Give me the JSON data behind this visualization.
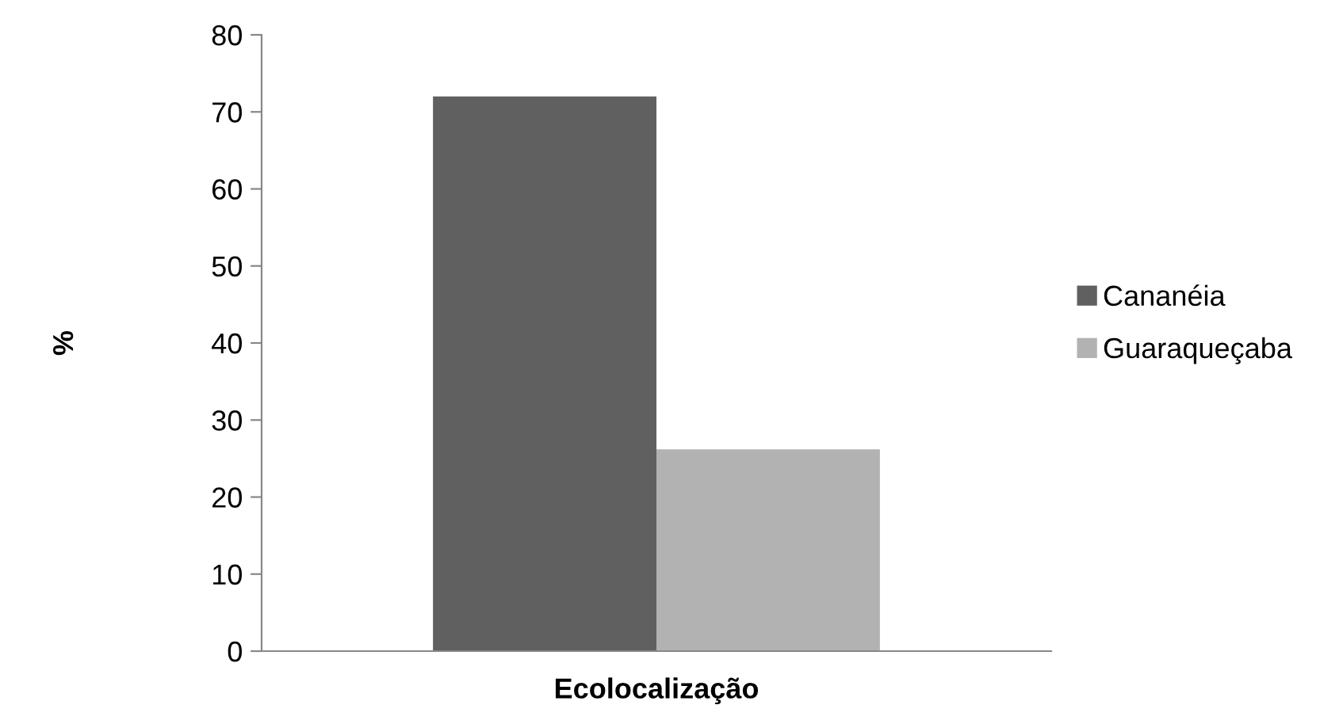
{
  "chart_data": {
    "type": "bar",
    "ylabel": "%",
    "categories": [
      "Ecolocalização"
    ],
    "series": [
      {
        "name": "Cananéia",
        "color": "#606060",
        "values": [
          72
        ]
      },
      {
        "name": "Guaraqueçaba",
        "color": "#b2b2b2",
        "values": [
          26.2
        ]
      }
    ],
    "ylim": [
      0,
      80
    ],
    "yticks": [
      0,
      10,
      20,
      30,
      40,
      50,
      60,
      70,
      80
    ],
    "grid": false,
    "legend": "right"
  }
}
